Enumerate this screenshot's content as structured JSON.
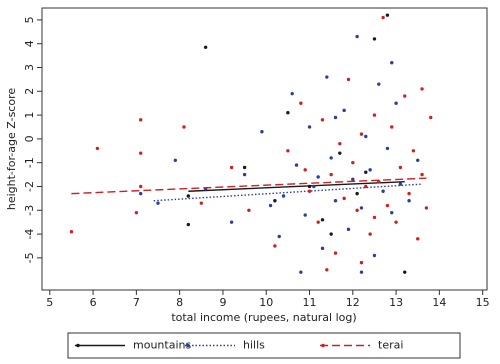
{
  "chart_data": {
    "type": "scatter",
    "x_label": "total income (rupees, natural log)",
    "y_label": "height-for-age Z-score",
    "xlim": [
      4.82,
      15.1
    ],
    "ylim": [
      -6.35,
      5.5
    ],
    "xticks": [
      5,
      6,
      7,
      8,
      9,
      10,
      11,
      12,
      13,
      14,
      15
    ],
    "yticks": [
      -5,
      -4,
      -3,
      -2,
      -1,
      0,
      1,
      2,
      3,
      4,
      5
    ],
    "series": [
      {
        "name": "mountains",
        "color": "#1a1a1a",
        "line_style": "solid",
        "x": [
          8.2,
          8.2,
          8.6,
          9.5,
          10.2,
          10.5,
          11,
          11.3,
          11.7,
          12.1,
          12.5,
          12.8,
          13.2,
          12.3,
          11.5
        ],
        "values": [
          -2.4,
          -3.6,
          3.85,
          -1.2,
          -2.6,
          1.1,
          -2,
          -3.4,
          -0.6,
          -2.3,
          4.2,
          5.2,
          -5.6,
          -1.4,
          -4
        ],
        "fit_x": [
          8.2,
          13.2
        ],
        "fit_values": [
          -2.2,
          -1.8
        ]
      },
      {
        "name": "hills",
        "color": "#2a3f9e",
        "line_style": "dotted",
        "x": [
          7.1,
          7.5,
          7.9,
          8.6,
          9.2,
          9.5,
          9.9,
          10.1,
          10.3,
          10.6,
          10.7,
          10.9,
          11,
          11.1,
          11.3,
          11.4,
          11.5,
          11.6,
          11.8,
          11.9,
          12,
          12.1,
          12.2,
          12.3,
          12.4,
          12.5,
          12.6,
          12.7,
          12.8,
          12.9,
          13,
          13.1,
          13.3,
          13.5,
          12.2,
          10.8,
          11.6,
          12.9,
          11.2,
          10.4
        ],
        "values": [
          -2.3,
          -2.7,
          -0.9,
          -2.1,
          -3.5,
          -1.5,
          0.3,
          -2.8,
          -4.1,
          1.9,
          -1.1,
          -3.2,
          0.5,
          -2,
          -4.6,
          2.6,
          -0.8,
          -2.6,
          1.2,
          -3.8,
          -1.7,
          4.3,
          -2.9,
          0.1,
          -1.3,
          -4.9,
          2.3,
          -2.2,
          -0.4,
          -3.1,
          1.5,
          -1.9,
          -2.6,
          -0.9,
          -5.6,
          -5.6,
          0.9,
          3.2,
          -1.6,
          -2.4
        ],
        "fit_x": [
          7.4,
          13.6
        ],
        "fit_values": [
          -2.6,
          -1.9
        ]
      },
      {
        "name": "terai",
        "color": "#cc2222",
        "line_style": "dashed",
        "x": [
          5.5,
          6.1,
          7,
          7.1,
          7.1,
          7.1,
          8.1,
          8.5,
          9.2,
          9.6,
          10.2,
          10.5,
          10.8,
          11,
          11.2,
          11.3,
          11.5,
          11.6,
          11.8,
          11.9,
          12,
          12.1,
          12.2,
          12.3,
          12.4,
          12.5,
          12.6,
          12.7,
          12.8,
          12.9,
          13,
          13.1,
          13.2,
          13.3,
          13.4,
          13.5,
          13.6,
          13.7,
          13.8,
          13.6,
          11.4,
          12.2,
          10.9,
          11.7,
          12.5
        ],
        "values": [
          -3.9,
          -0.4,
          -3.1,
          0.8,
          -0.6,
          -2,
          0.5,
          -2.7,
          -1.2,
          -3,
          -4.5,
          -0.5,
          1.5,
          -2.2,
          -3.5,
          0.8,
          -1.5,
          -4.8,
          -2.5,
          2.5,
          -1,
          -3,
          0.2,
          -2,
          -4,
          1,
          -1.8,
          5.1,
          -2.8,
          0.5,
          -3.5,
          -1.2,
          1.8,
          -2.3,
          -0.5,
          -4.2,
          2.1,
          -2.9,
          0.9,
          -1.5,
          -5.5,
          -5.2,
          -1.3,
          -0.2,
          -3.3
        ],
        "fit_x": [
          5.5,
          13.7
        ],
        "fit_values": [
          -2.3,
          -1.65
        ]
      }
    ]
  }
}
